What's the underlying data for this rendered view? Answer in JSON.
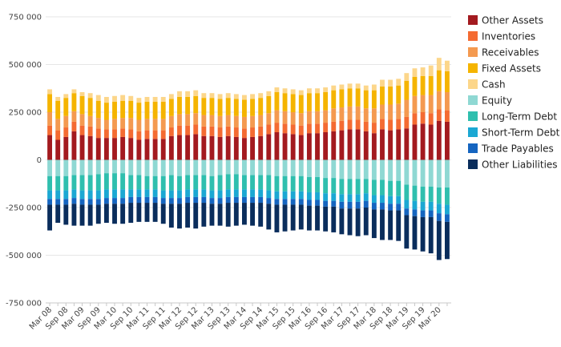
{
  "chart_data": {
    "type": "bar",
    "stacked": true,
    "title": "",
    "xlabel": "",
    "ylabel": "",
    "ylim": [
      -750000,
      750000
    ],
    "yticks": [
      -750000,
      -500000,
      -250000,
      0,
      250000,
      500000,
      750000
    ],
    "ytick_labels": [
      "-750 000",
      "-500 000",
      "-250 000",
      "0",
      "250 000",
      "500 000",
      "750 000"
    ],
    "grid": true,
    "legend_position": "right",
    "categories": [
      "Mar 08",
      "Jun 08",
      "Sep 08",
      "Dec 08",
      "Mar 09",
      "Jun 09",
      "Sep 09",
      "Dec 09",
      "Mar 10",
      "Jun 10",
      "Sep 10",
      "Dec 10",
      "Mar 11",
      "Jun 11",
      "Sep 11",
      "Dec 11",
      "Mar 12",
      "Jun 12",
      "Sep 12",
      "Dec 12",
      "Mar 13",
      "Jun 13",
      "Sep 13",
      "Dec 13",
      "Mar 14",
      "Jun 14",
      "Sep 14",
      "Dec 14",
      "Mar 15",
      "Jun 15",
      "Sep 15",
      "Dec 15",
      "Mar 16",
      "Jun 16",
      "Sep 16",
      "Dec 16",
      "Mar 17",
      "Jun 17",
      "Sep 17",
      "Dec 17",
      "Mar 18",
      "Jun 18",
      "Sep 18",
      "Dec 18",
      "Mar 19",
      "Jun 19",
      "Sep 19",
      "Dec 19",
      "Mar 20",
      "Jun 20"
    ],
    "x_tick_labels": [
      "Mar 08",
      "Sep 08",
      "Mar 09",
      "Sep 09",
      "Mar 10",
      "Sep 10",
      "Mar 11",
      "Sep 11",
      "Mar 12",
      "Sep 12",
      "Mar 13",
      "Sep 13",
      "Mar 14",
      "Sep 14",
      "Mar 15",
      "Sep 15",
      "Mar 16",
      "Sep 16",
      "Mar 17",
      "Sep 17",
      "Mar 18",
      "Sep 18",
      "Mar 19",
      "Sep 19",
      "Mar 20"
    ],
    "series": [
      {
        "name": "Other Assets",
        "color": "#a31a1f",
        "values": [
          130000,
          105000,
          120000,
          150000,
          130000,
          125000,
          115000,
          115000,
          115000,
          120000,
          115000,
          105000,
          110000,
          110000,
          110000,
          125000,
          130000,
          130000,
          135000,
          125000,
          125000,
          120000,
          125000,
          120000,
          115000,
          120000,
          125000,
          135000,
          145000,
          140000,
          135000,
          130000,
          140000,
          140000,
          145000,
          150000,
          155000,
          160000,
          160000,
          150000,
          140000,
          160000,
          155000,
          160000,
          165000,
          185000,
          190000,
          185000,
          205000,
          200000
        ]
      },
      {
        "name": "Inventories",
        "color": "#f46b32",
        "values": [
          50000,
          50000,
          50000,
          50000,
          50000,
          50000,
          50000,
          45000,
          45000,
          45000,
          45000,
          45000,
          45000,
          45000,
          45000,
          45000,
          50000,
          50000,
          50000,
          50000,
          50000,
          50000,
          50000,
          50000,
          50000,
          50000,
          50000,
          50000,
          50000,
          50000,
          50000,
          50000,
          50000,
          50000,
          50000,
          50000,
          50000,
          50000,
          50000,
          50000,
          55000,
          55000,
          55000,
          55000,
          60000,
          60000,
          60000,
          60000,
          60000,
          60000
        ]
      },
      {
        "name": "Receivables",
        "color": "#f49a50",
        "values": [
          70000,
          60000,
          60000,
          55000,
          60000,
          55000,
          55000,
          50000,
          55000,
          55000,
          60000,
          60000,
          60000,
          60000,
          60000,
          60000,
          60000,
          60000,
          60000,
          60000,
          60000,
          60000,
          60000,
          60000,
          60000,
          60000,
          60000,
          60000,
          65000,
          65000,
          65000,
          65000,
          65000,
          65000,
          65000,
          70000,
          70000,
          70000,
          70000,
          70000,
          75000,
          75000,
          80000,
          80000,
          90000,
          90000,
          90000,
          95000,
          95000,
          95000
        ]
      },
      {
        "name": "Fixed Assets",
        "color": "#f5b400",
        "values": [
          95000,
          95000,
          95000,
          95000,
          95000,
          95000,
          90000,
          90000,
          90000,
          90000,
          90000,
          90000,
          90000,
          90000,
          90000,
          90000,
          90000,
          90000,
          90000,
          90000,
          90000,
          90000,
          90000,
          90000,
          90000,
          90000,
          90000,
          90000,
          95000,
          95000,
          95000,
          95000,
          95000,
          95000,
          95000,
          95000,
          95000,
          95000,
          95000,
          95000,
          95000,
          95000,
          95000,
          95000,
          100000,
          100000,
          100000,
          100000,
          110000,
          110000
        ]
      },
      {
        "name": "Cash",
        "color": "#fcd68a",
        "values": [
          25000,
          20000,
          20000,
          20000,
          20000,
          25000,
          30000,
          30000,
          30000,
          30000,
          25000,
          25000,
          25000,
          25000,
          25000,
          25000,
          30000,
          30000,
          30000,
          25000,
          25000,
          25000,
          25000,
          25000,
          25000,
          25000,
          25000,
          25000,
          25000,
          25000,
          25000,
          25000,
          25000,
          25000,
          25000,
          25000,
          25000,
          25000,
          25000,
          25000,
          30000,
          35000,
          35000,
          35000,
          40000,
          45000,
          45000,
          55000,
          65000,
          55000
        ]
      },
      {
        "name": "Equity",
        "color": "#8fd8d3",
        "values": [
          -85000,
          -85000,
          -85000,
          -80000,
          -80000,
          -80000,
          -75000,
          -70000,
          -70000,
          -70000,
          -80000,
          -80000,
          -85000,
          -85000,
          -85000,
          -80000,
          -85000,
          -80000,
          -80000,
          -80000,
          -85000,
          -80000,
          -75000,
          -75000,
          -80000,
          -80000,
          -80000,
          -80000,
          -85000,
          -85000,
          -85000,
          -85000,
          -90000,
          -90000,
          -95000,
          -95000,
          -100000,
          -100000,
          -100000,
          -100000,
          -105000,
          -105000,
          -110000,
          -110000,
          -130000,
          -135000,
          -140000,
          -140000,
          -145000,
          -145000
        ]
      },
      {
        "name": "Long-Term Debt",
        "color": "#2fbfae",
        "values": [
          -75000,
          -75000,
          -75000,
          -75000,
          -80000,
          -80000,
          -85000,
          -85000,
          -85000,
          -85000,
          -75000,
          -75000,
          -70000,
          -70000,
          -75000,
          -80000,
          -75000,
          -75000,
          -75000,
          -75000,
          -75000,
          -80000,
          -80000,
          -80000,
          -75000,
          -75000,
          -75000,
          -80000,
          -80000,
          -80000,
          -80000,
          -80000,
          -80000,
          -80000,
          -80000,
          -80000,
          -80000,
          -80000,
          -80000,
          -75000,
          -80000,
          -80000,
          -80000,
          -80000,
          -80000,
          -80000,
          -80000,
          -80000,
          -85000,
          -90000
        ]
      },
      {
        "name": "Short-Term Debt",
        "color": "#1ba8d3",
        "values": [
          -45000,
          -45000,
          -45000,
          -45000,
          -45000,
          -45000,
          -45000,
          -45000,
          -45000,
          -45000,
          -40000,
          -40000,
          -40000,
          -40000,
          -40000,
          -40000,
          -40000,
          -40000,
          -40000,
          -40000,
          -40000,
          -40000,
          -40000,
          -40000,
          -40000,
          -40000,
          -40000,
          -40000,
          -40000,
          -40000,
          -40000,
          -40000,
          -40000,
          -40000,
          -40000,
          -40000,
          -40000,
          -40000,
          -40000,
          -40000,
          -40000,
          -40000,
          -40000,
          -40000,
          -45000,
          -45000,
          -45000,
          -45000,
          -50000,
          -50000
        ]
      },
      {
        "name": "Trade Payables",
        "color": "#1565c0",
        "values": [
          -30000,
          -30000,
          -30000,
          -30000,
          -30000,
          -30000,
          -30000,
          -30000,
          -30000,
          -30000,
          -30000,
          -30000,
          -30000,
          -30000,
          -30000,
          -30000,
          -30000,
          -30000,
          -30000,
          -30000,
          -30000,
          -30000,
          -30000,
          -30000,
          -30000,
          -30000,
          -30000,
          -30000,
          -30000,
          -30000,
          -30000,
          -30000,
          -30000,
          -30000,
          -30000,
          -30000,
          -35000,
          -35000,
          -35000,
          -35000,
          -35000,
          -35000,
          -35000,
          -35000,
          -35000,
          -35000,
          -35000,
          -35000,
          -40000,
          -40000
        ]
      },
      {
        "name": "Other Liabilities",
        "color": "#0a2d5c",
        "values": [
          -135000,
          -95000,
          -105000,
          -115000,
          -110000,
          -110000,
          -100000,
          -100000,
          -105000,
          -105000,
          -105000,
          -100000,
          -100000,
          -100000,
          -105000,
          -125000,
          -130000,
          -130000,
          -135000,
          -125000,
          -115000,
          -115000,
          -125000,
          -120000,
          -115000,
          -120000,
          -125000,
          -135000,
          -145000,
          -140000,
          -135000,
          -130000,
          -130000,
          -130000,
          -130000,
          -135000,
          -135000,
          -140000,
          -145000,
          -145000,
          -150000,
          -160000,
          -155000,
          -160000,
          -175000,
          -175000,
          -180000,
          -190000,
          -205000,
          -195000
        ]
      }
    ]
  }
}
